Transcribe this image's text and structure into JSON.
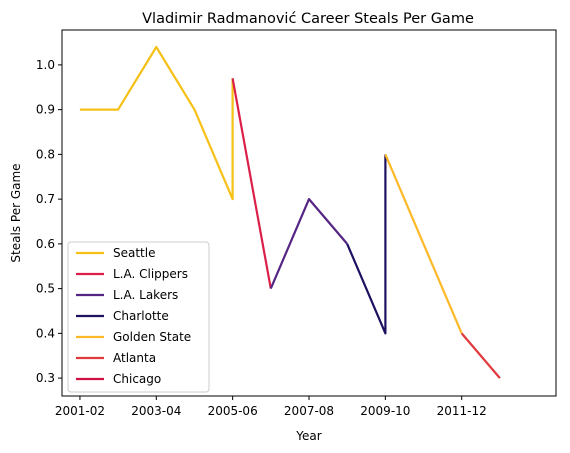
{
  "chart_data": {
    "type": "line",
    "title": "Vladimir Radmanović Career Steals Per Game",
    "xlabel": "Year",
    "ylabel": "Steals Per Game",
    "x_ticks": [
      "2001-02",
      "2003-04",
      "2005-06",
      "2007-08",
      "2009-10",
      "2011-12"
    ],
    "y_ticks": [
      "0.3",
      "0.4",
      "0.5",
      "0.6",
      "0.7",
      "0.8",
      "0.9",
      "1.0"
    ],
    "ylim": [
      0.26,
      1.078
    ],
    "grid": false,
    "legend_position": "lower left",
    "series": [
      {
        "name": "Seattle",
        "color": "#F6C016",
        "x": [
          "2001-02",
          "2002-03",
          "2003-04",
          "2004-05",
          "2005-06",
          "2005-06"
        ],
        "y": [
          0.9,
          0.9,
          1.04,
          0.9,
          0.7,
          0.97
        ]
      },
      {
        "name": "L.A. Clippers",
        "color": "#DC1F48",
        "x": [
          "2005-06",
          "2006-07"
        ],
        "y": [
          0.97,
          0.5
        ]
      },
      {
        "name": "L.A. Lakers",
        "color": "#552583",
        "x": [
          "2006-07",
          "2007-08",
          "2008-09"
        ],
        "y": [
          0.5,
          0.7,
          0.6
        ]
      },
      {
        "name": "Charlotte",
        "color": "#1D1160",
        "x": [
          "2008-09",
          "2009-10",
          "2009-10"
        ],
        "y": [
          0.6,
          0.4,
          0.8
        ]
      },
      {
        "name": "Golden State",
        "color": "#FDB927",
        "x": [
          "2009-10",
          "2010-11",
          "2011-12"
        ],
        "y": [
          0.8,
          0.6,
          0.4
        ]
      },
      {
        "name": "Atlanta",
        "color": "#E03A3E",
        "x": [
          "2011-12",
          "2012-13"
        ],
        "y": [
          0.4,
          0.3
        ]
      },
      {
        "name": "Chicago",
        "color": "#CE1141",
        "x": [],
        "y": []
      }
    ]
  }
}
